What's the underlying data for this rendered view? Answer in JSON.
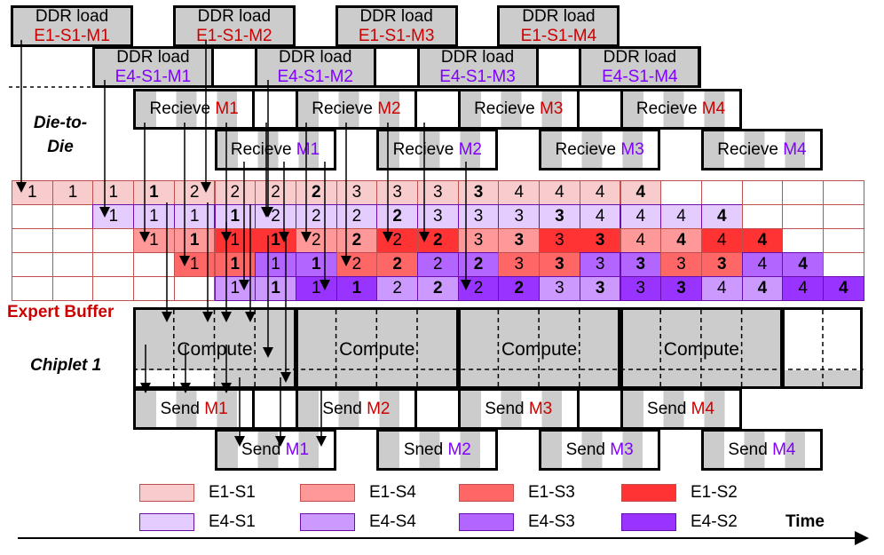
{
  "labels": {
    "die_to_die": "Die-to-Die",
    "expert_buffer": "Expert Buffer",
    "chiplet": "Chiplet 1",
    "time": "Time"
  },
  "ddr_e1": [
    {
      "title": "DDR load",
      "tag": "E1-S1-M1"
    },
    {
      "title": "DDR load",
      "tag": "E1-S1-M2"
    },
    {
      "title": "DDR load",
      "tag": "E1-S1-M3"
    },
    {
      "title": "DDR load",
      "tag": "E1-S1-M4"
    }
  ],
  "ddr_e4": [
    {
      "title": "DDR load",
      "tag": "E4-S1-M1"
    },
    {
      "title": "DDR load",
      "tag": "E4-S1-M2"
    },
    {
      "title": "DDR load",
      "tag": "E4-S1-M3"
    },
    {
      "title": "DDR load",
      "tag": "E4-S1-M4"
    }
  ],
  "receive_e1": [
    {
      "verb": "Recieve",
      "tag": "M1"
    },
    {
      "verb": "Recieve",
      "tag": "M2"
    },
    {
      "verb": "Recieve",
      "tag": "M3"
    },
    {
      "verb": "Recieve",
      "tag": "M4"
    }
  ],
  "receive_e4": [
    {
      "verb": "Recieve",
      "tag": "M1"
    },
    {
      "verb": "Recieve",
      "tag": "M2"
    },
    {
      "verb": "Recieve",
      "tag": "M3"
    },
    {
      "verb": "Recieve",
      "tag": "M4"
    }
  ],
  "compute": [
    "Compute",
    "Compute",
    "Compute",
    "Compute"
  ],
  "send_e1": [
    {
      "verb": "Send",
      "tag": "M1"
    },
    {
      "verb": "Send",
      "tag": "M2"
    },
    {
      "verb": "Send",
      "tag": "M3"
    },
    {
      "verb": "Send",
      "tag": "M4"
    }
  ],
  "send_e4": [
    {
      "verb": "Send",
      "tag": "M1"
    },
    {
      "verb": "Sned",
      "tag": "M2"
    },
    {
      "verb": "Send",
      "tag": "M3"
    },
    {
      "verb": "Send",
      "tag": "M4"
    }
  ],
  "colors": {
    "E1-S1": "#f8cccc",
    "E1-S4": "#ff9999",
    "E1-S3": "#ff6666",
    "E1-S2": "#ff3333",
    "E4-S1": "#e5ccff",
    "E4-S4": "#cc99ff",
    "E4-S3": "#b266ff",
    "E4-S2": "#9933ff"
  },
  "buffer_grid": [
    [
      [
        "1",
        "E1-S1"
      ],
      [
        "1",
        "E1-S1"
      ],
      [
        "1",
        "E1-S1"
      ],
      [
        "1b",
        "E1-S1"
      ],
      [
        "2",
        "E1-S1"
      ],
      [
        "2",
        "E1-S1"
      ],
      [
        "2",
        "E1-S1"
      ],
      [
        "2b",
        "E1-S1"
      ],
      [
        "3",
        "E1-S1"
      ],
      [
        "3",
        "E1-S1"
      ],
      [
        "3",
        "E1-S1"
      ],
      [
        "3b",
        "E1-S1"
      ],
      [
        "4",
        "E1-S1"
      ],
      [
        "4",
        "E1-S1"
      ],
      [
        "4",
        "E1-S1"
      ],
      [
        "4b",
        "E1-S1"
      ],
      null,
      null,
      null,
      null,
      null
    ],
    [
      null,
      null,
      [
        "1",
        "E4-S1"
      ],
      [
        "1",
        "E4-S1"
      ],
      [
        "1",
        "E4-S1"
      ],
      [
        "1b",
        "E4-S1"
      ],
      [
        "2",
        "E4-S1"
      ],
      [
        "2",
        "E4-S1"
      ],
      [
        "2",
        "E4-S1"
      ],
      [
        "2b",
        "E4-S1"
      ],
      [
        "3",
        "E4-S1"
      ],
      [
        "3",
        "E4-S1"
      ],
      [
        "3",
        "E4-S1"
      ],
      [
        "3b",
        "E4-S1"
      ],
      [
        "4",
        "E4-S1"
      ],
      [
        "4",
        "E4-S1"
      ],
      [
        "4",
        "E4-S1"
      ],
      [
        "4b",
        "E4-S1"
      ],
      null,
      null,
      null
    ],
    [
      null,
      null,
      null,
      [
        "1",
        "E1-S4"
      ],
      [
        "1b",
        "E1-S4"
      ],
      [
        "1",
        "E1-S2"
      ],
      [
        "1b",
        "E1-S2"
      ],
      [
        "2",
        "E1-S4"
      ],
      [
        "2b",
        "E1-S4"
      ],
      [
        "2",
        "E1-S2"
      ],
      [
        "2b",
        "E1-S2"
      ],
      [
        "3",
        "E1-S4"
      ],
      [
        "3b",
        "E1-S4"
      ],
      [
        "3",
        "E1-S2"
      ],
      [
        "3b",
        "E1-S2"
      ],
      [
        "4",
        "E1-S4"
      ],
      [
        "4b",
        "E1-S4"
      ],
      [
        "4",
        "E1-S2"
      ],
      [
        "4b",
        "E1-S2"
      ],
      null,
      null
    ],
    [
      null,
      null,
      null,
      null,
      [
        "1",
        "E1-S3"
      ],
      [
        "1b",
        "E1-S3"
      ],
      [
        "1",
        "E4-S3"
      ],
      [
        "1b",
        "E4-S3"
      ],
      [
        "2",
        "E1-S3"
      ],
      [
        "2b",
        "E1-S3"
      ],
      [
        "2",
        "E4-S3"
      ],
      [
        "2b",
        "E4-S3"
      ],
      [
        "3",
        "E1-S3"
      ],
      [
        "3b",
        "E1-S3"
      ],
      [
        "3",
        "E4-S3"
      ],
      [
        "3b",
        "E4-S3"
      ],
      [
        "3",
        "E1-S3"
      ],
      [
        "3b",
        "E1-S3"
      ],
      [
        "4",
        "E4-S3"
      ],
      [
        "4b",
        "E4-S3"
      ],
      null
    ],
    [
      null,
      null,
      null,
      null,
      null,
      [
        "1",
        "E4-S4"
      ],
      [
        "1b",
        "E4-S4"
      ],
      [
        "1",
        "E4-S2"
      ],
      [
        "1b",
        "E4-S2"
      ],
      [
        "2",
        "E4-S4"
      ],
      [
        "2b",
        "E4-S4"
      ],
      [
        "2",
        "E4-S2"
      ],
      [
        "2b",
        "E4-S2"
      ],
      [
        "3",
        "E4-S4"
      ],
      [
        "3b",
        "E4-S4"
      ],
      [
        "3",
        "E4-S2"
      ],
      [
        "3b",
        "E4-S2"
      ],
      [
        "4",
        "E4-S4"
      ],
      [
        "4b",
        "E4-S4"
      ],
      [
        "4",
        "E4-S2"
      ],
      [
        "4b",
        "E4-S2"
      ]
    ]
  ],
  "legend": [
    [
      "E1-S1",
      "E1-S4",
      "E1-S3",
      "E1-S2"
    ],
    [
      "E4-S1",
      "E4-S4",
      "E4-S3",
      "E4-S2"
    ]
  ]
}
